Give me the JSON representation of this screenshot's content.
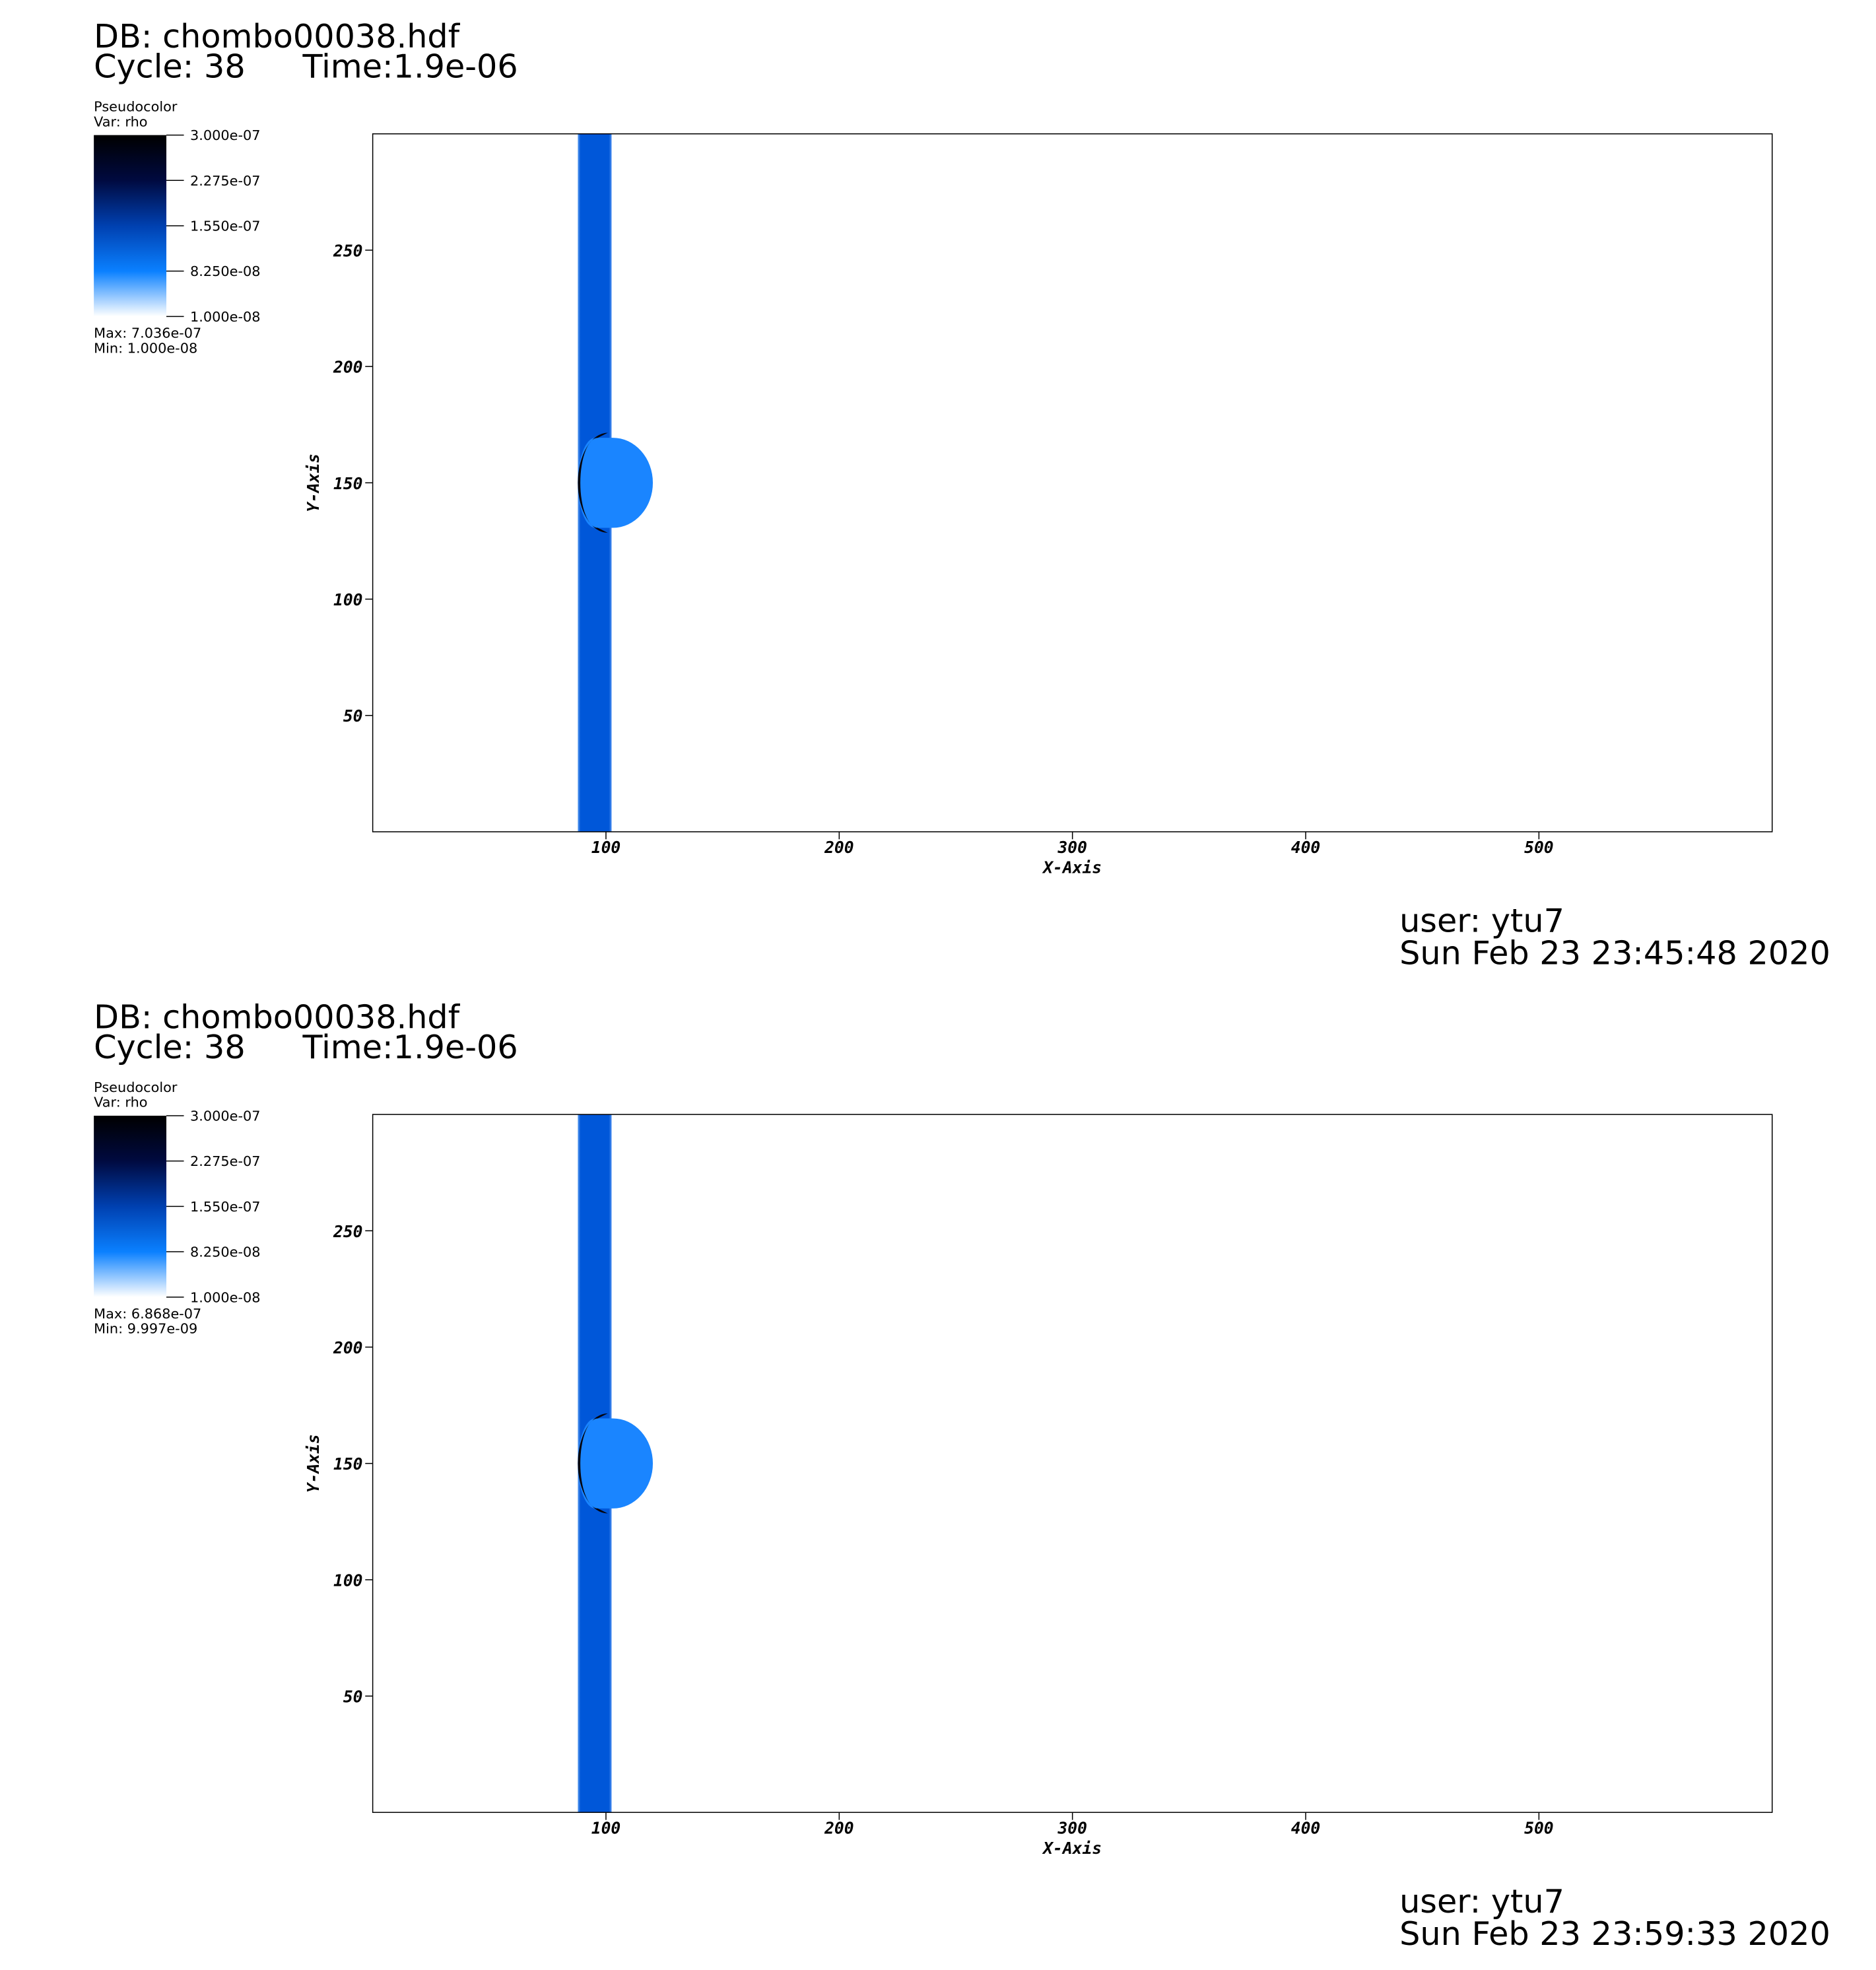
{
  "chart_data": [
    {
      "type": "pseudocolor",
      "db": "DB: chombo00038.hdf",
      "cycle": "Cycle: 38",
      "time": "Time:1.9e-06",
      "legend_title": "Pseudocolor",
      "legend_var": "Var: rho",
      "clim": [
        1e-08,
        3e-07
      ],
      "colorbar_ticks": [
        {
          "value": 3e-07,
          "label": "3.000e-07"
        },
        {
          "value": 2.275e-07,
          "label": "2.275e-07"
        },
        {
          "value": 1.55e-07,
          "label": "1.550e-07"
        },
        {
          "value": 8.25e-08,
          "label": "8.250e-08"
        },
        {
          "value": 1e-08,
          "label": "1.000e-08"
        }
      ],
      "max": "Max:  7.036e-07",
      "min": "Min:  1.000e-08",
      "xlabel": "X-Axis",
      "ylabel": "Y-Axis",
      "xlim": [
        0,
        600
      ],
      "ylim": [
        0,
        300
      ],
      "xticks": [
        100,
        200,
        300,
        400,
        500
      ],
      "yticks": [
        50,
        100,
        150,
        200,
        250
      ],
      "user": "user: ytu7",
      "date": "Sun Feb 23 23:45:48 2020"
    },
    {
      "type": "pseudocolor",
      "db": "DB: chombo00038.hdf",
      "cycle": "Cycle: 38",
      "time": "Time:1.9e-06",
      "legend_title": "Pseudocolor",
      "legend_var": "Var: rho",
      "clim": [
        1e-08,
        3e-07
      ],
      "colorbar_ticks": [
        {
          "value": 3e-07,
          "label": "3.000e-07"
        },
        {
          "value": 2.275e-07,
          "label": "2.275e-07"
        },
        {
          "value": 1.55e-07,
          "label": "1.550e-07"
        },
        {
          "value": 8.25e-08,
          "label": "8.250e-08"
        },
        {
          "value": 1e-08,
          "label": "1.000e-08"
        }
      ],
      "max": "Max:  6.868e-07",
      "min": "Min:  9.997e-09",
      "xlabel": "X-Axis",
      "ylabel": "Y-Axis",
      "xlim": [
        0,
        600
      ],
      "ylim": [
        0,
        300
      ],
      "xticks": [
        100,
        200,
        300,
        400,
        500
      ],
      "yticks": [
        50,
        100,
        150,
        200,
        250
      ],
      "user": "user: ytu7",
      "date": "Sun Feb 23 23:59:33 2020"
    }
  ]
}
